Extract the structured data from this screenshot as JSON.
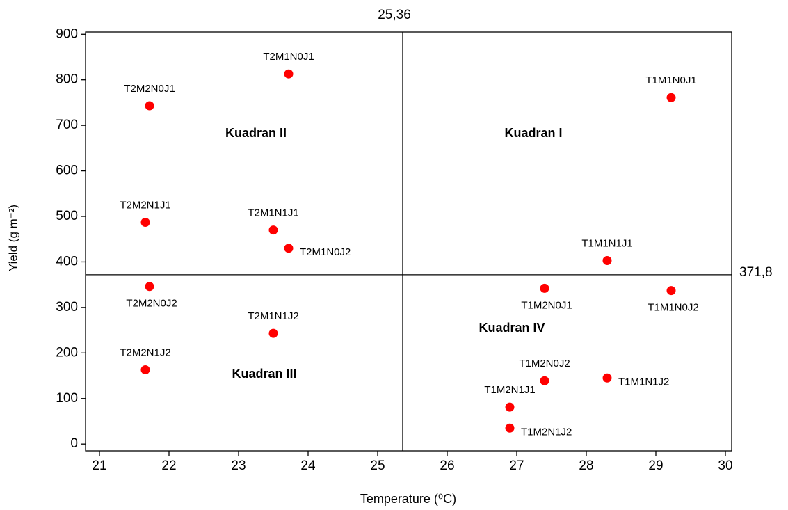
{
  "chart_data": {
    "type": "scatter",
    "xlabel": "Temperature (⁰C)",
    "ylabel": "Yield (g m⁻²)",
    "x": [
      23.72,
      21.72,
      29.22,
      21.66,
      23.5,
      23.72,
      28.3,
      21.72,
      27.4,
      29.22,
      23.5,
      21.66,
      27.4,
      28.3,
      26.9,
      26.9
    ],
    "values": [
      813,
      743,
      761,
      487,
      470,
      430,
      403,
      346,
      342,
      337,
      243,
      163,
      139,
      145,
      81,
      35
    ],
    "point_labels": [
      "T2M1N0J1",
      "T2M2N0J1",
      "T1M1N0J1",
      "T2M2N1J1",
      "T2M1N1J1",
      "T2M1N0J2",
      "T1M1N1J1",
      "T2M2N0J2",
      "T1M2N0J1",
      "T1M1N0J2",
      "T2M1N1J2",
      "T2M2N1J2",
      "T1M2N0J2",
      "T1M1N1J2",
      "T1M2N1J1",
      "T1M2N1J2"
    ],
    "color": "#ff0000",
    "xlim": [
      20.8,
      30.09
    ],
    "ylim": [
      -15,
      905
    ],
    "xticks": [
      21,
      22,
      23,
      24,
      25,
      26,
      27,
      28,
      29,
      30
    ],
    "yticks": [
      0,
      100,
      200,
      300,
      400,
      500,
      600,
      700,
      800,
      900
    ],
    "vline": {
      "value": 25.36,
      "label": "25,36"
    },
    "hline": {
      "value": 371.8,
      "label": "371,8"
    },
    "annotations": [
      "Kuadran I",
      "Kuadran II",
      "Kuadran III",
      "Kuadran IV"
    ],
    "grid": false
  }
}
